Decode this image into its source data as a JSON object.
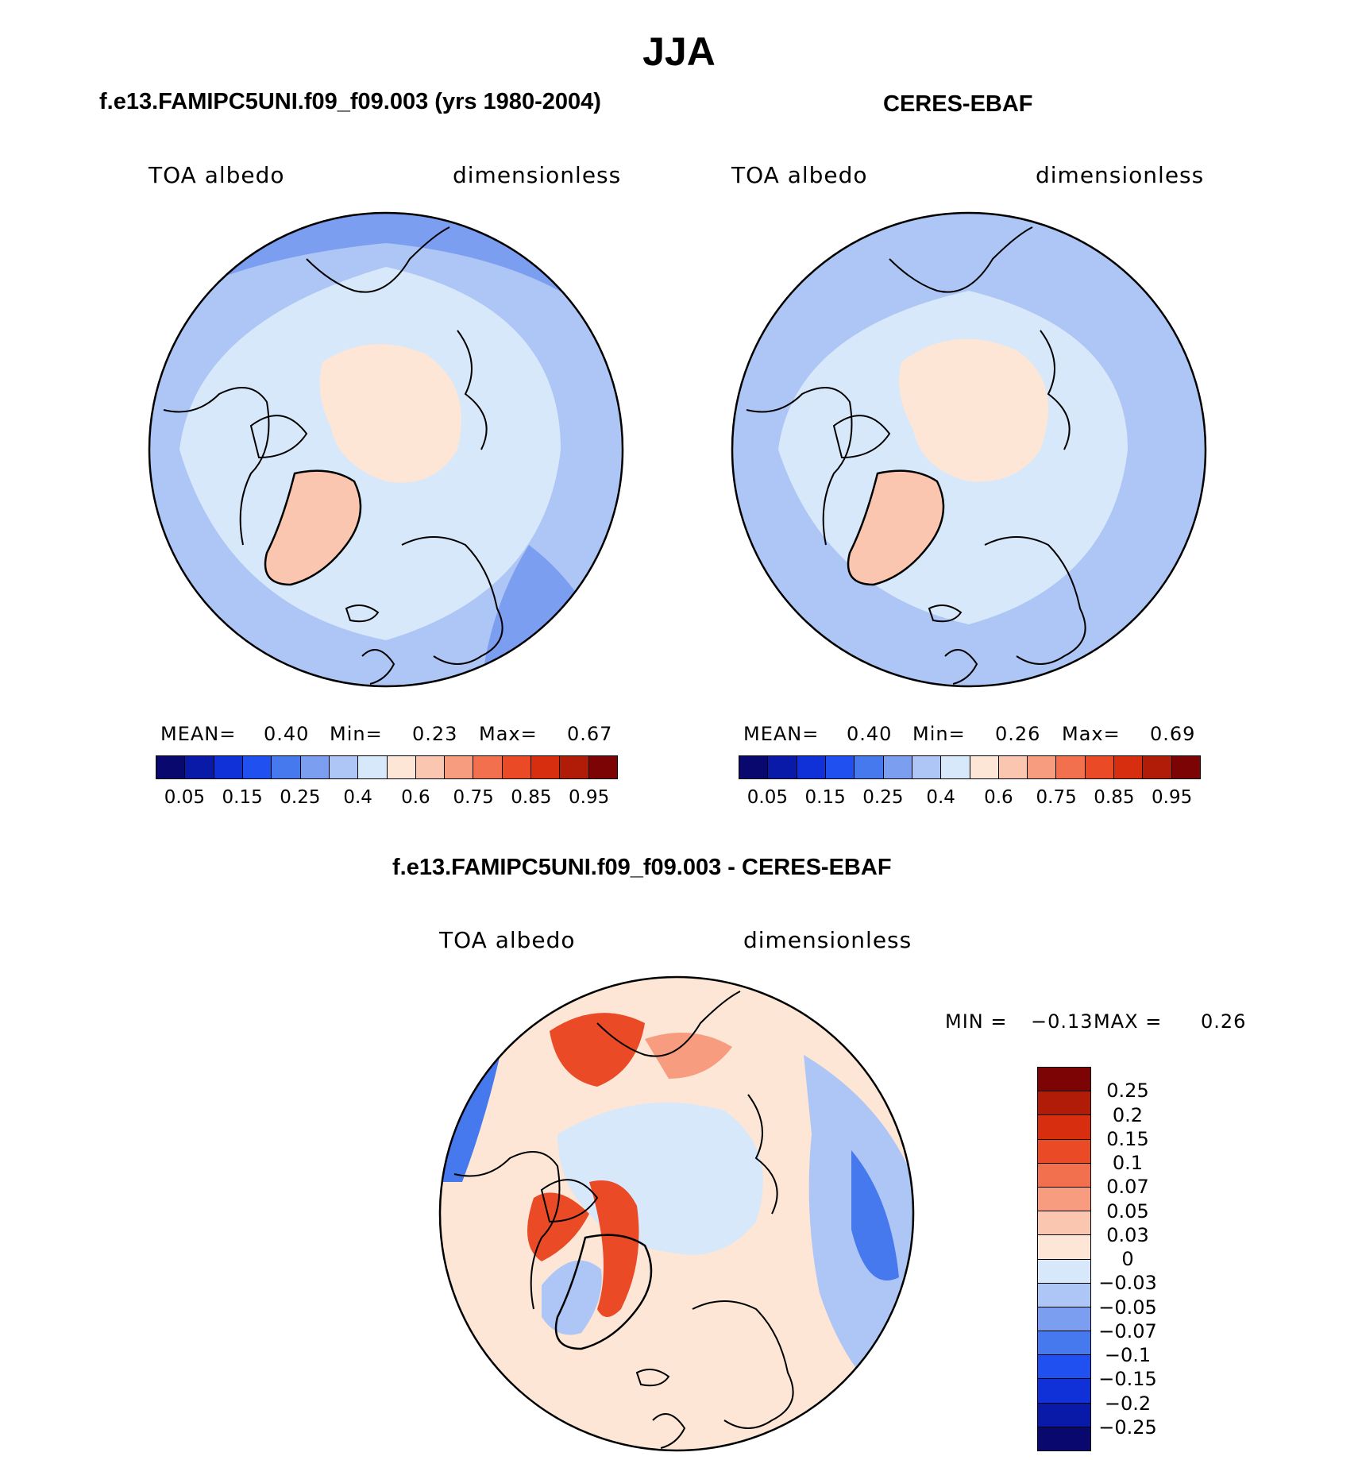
{
  "figure": {
    "title": "JJA"
  },
  "panels": [
    {
      "id": "model",
      "title": "f.e13.FAMIPC5UNI.f09_f09.003 (yrs 1980-2004)",
      "variable": "TOA albedo",
      "units": "dimensionless",
      "stats": {
        "mean_label": "MEAN=",
        "mean": "0.40",
        "min_label": "Min=",
        "min": "0.23",
        "max_label": "Max=",
        "max": "0.67"
      }
    },
    {
      "id": "obs",
      "title": "CERES-EBAF",
      "variable": "TOA albedo",
      "units": "dimensionless",
      "stats": {
        "mean_label": "MEAN=",
        "mean": "0.40",
        "min_label": "Min=",
        "min": "0.26",
        "max_label": "Max=",
        "max": "0.69"
      }
    },
    {
      "id": "diff",
      "title": "f.e13.FAMIPC5UNI.f09_f09.003 - CERES-EBAF",
      "variable": "TOA albedo",
      "units": "dimensionless",
      "stats": {
        "min_label": "MIN =",
        "min": "−0.13",
        "max_label": "MAX =",
        "max": "0.26"
      }
    }
  ],
  "colorbars": {
    "abs": {
      "colors": [
        "#08086e",
        "#0a1aa8",
        "#1030d8",
        "#2050f0",
        "#4678ee",
        "#7b9ef0",
        "#aec6f5",
        "#d8e8fb",
        "#fde6d6",
        "#fbc6b0",
        "#f79c7e",
        "#f2704e",
        "#ea4a26",
        "#d82e10",
        "#b01c08",
        "#7d0404"
      ],
      "tick_labels": [
        "0.05",
        "0.15",
        "0.25",
        "0.4",
        "0.6",
        "0.75",
        "0.85",
        "0.95"
      ]
    },
    "diff": {
      "colors": [
        "#7d0404",
        "#b01c08",
        "#d82e10",
        "#ea4a26",
        "#f2704e",
        "#f79c7e",
        "#fbc6b0",
        "#fde6d6",
        "#d8e8fb",
        "#aec6f5",
        "#7b9ef0",
        "#4678ee",
        "#2050f0",
        "#1030d8",
        "#0a1aa8",
        "#08086e"
      ],
      "tick_labels": [
        "0.25",
        "0.2",
        "0.15",
        "0.1",
        "0.07",
        "0.05",
        "0.03",
        "0",
        "−0.03",
        "−0.05",
        "−0.07",
        "−0.1",
        "−0.15",
        "−0.2",
        "−0.25"
      ]
    }
  },
  "map_colors": {
    "ocean_outer_low": "#7b9ef0",
    "ocean_outer_mid": "#aec6f5",
    "inner": "#d8e8fb",
    "ice": "#fde6d6",
    "greenland_model": "#fbc6b0",
    "greenland_obs": "#fbc6b0",
    "diff_pos_small": "#fde6d6",
    "diff_pos_mid": "#f79c7e",
    "diff_pos_high": "#ea4a26",
    "diff_neg_small": "#d8e8fb",
    "diff_neg_mid": "#aec6f5",
    "diff_neg_high": "#4678ee"
  }
}
